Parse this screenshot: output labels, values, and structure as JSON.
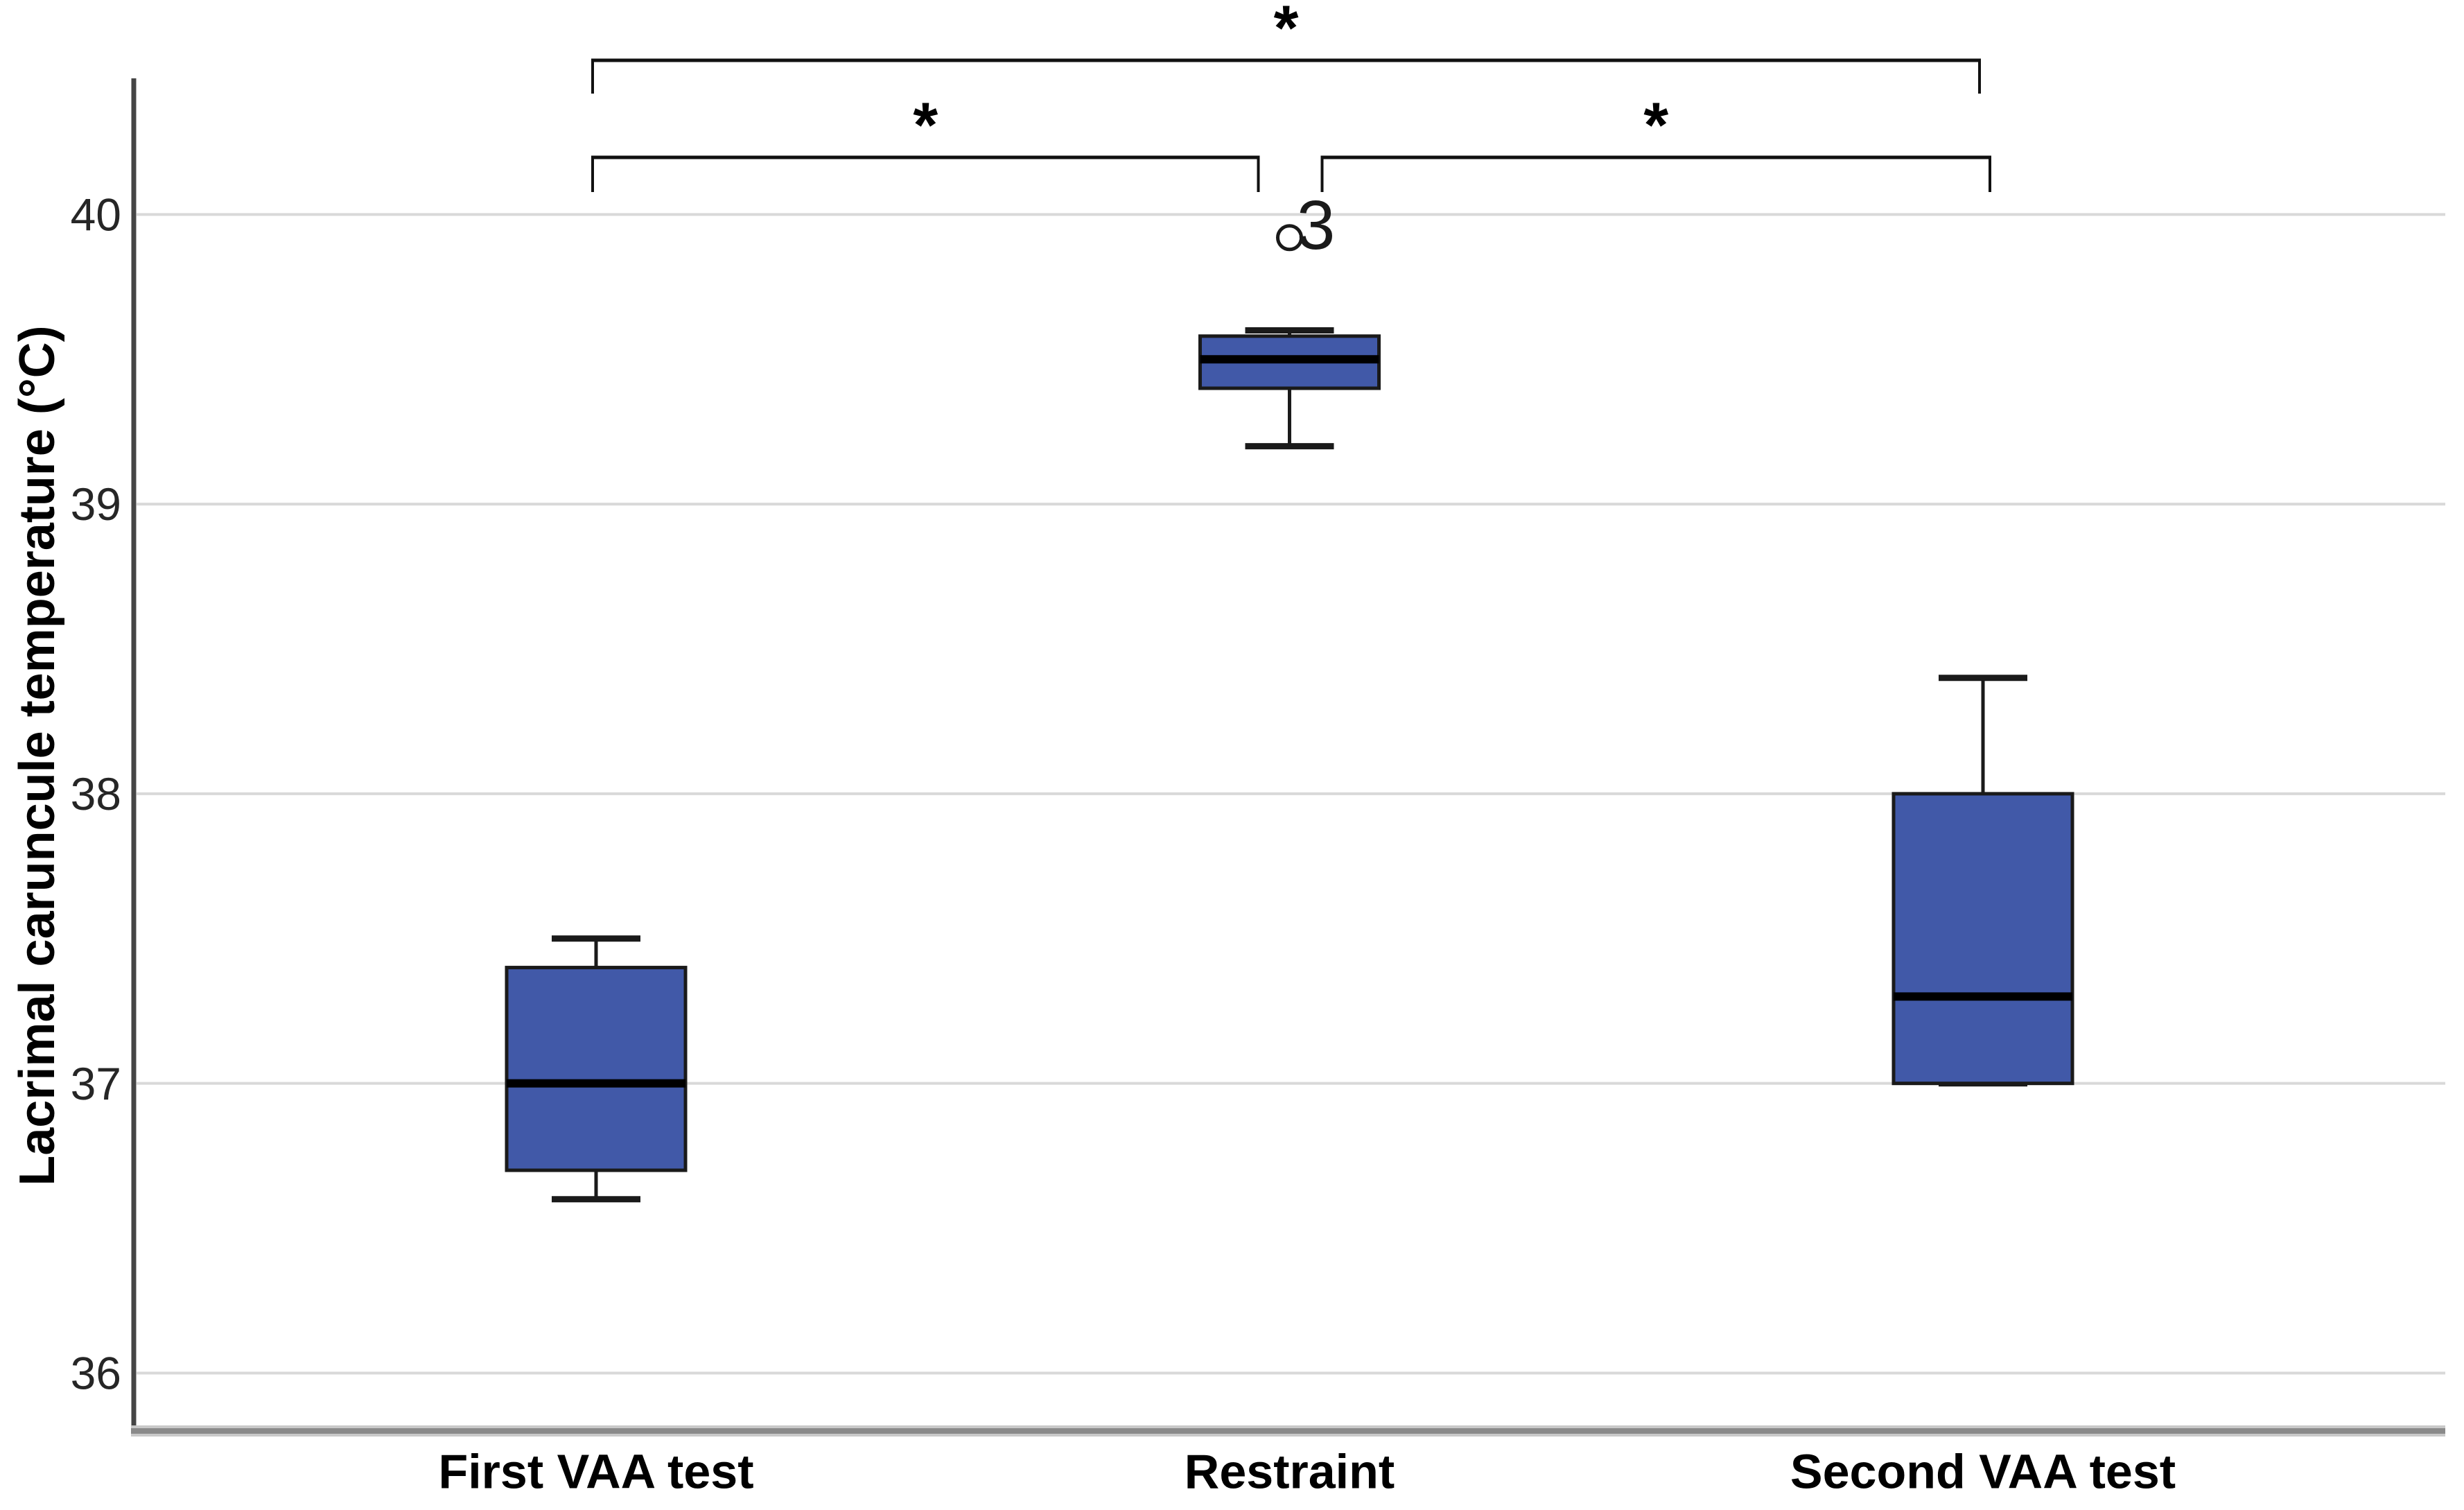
{
  "figure": {
    "background": "#ffffff"
  },
  "chart_data": {
    "type": "box",
    "title": "",
    "ylabel": "Lacrimal caruncule temperature (°C)",
    "xlabel": "",
    "ylim": [
      35.8,
      40.47
    ],
    "yticks": [
      "36",
      "37",
      "38",
      "39",
      "40"
    ],
    "ytick_values": [
      36,
      37,
      38,
      39,
      40
    ],
    "grid": "horizontal gridlines at each integer tick",
    "legend": "none",
    "categories": [
      "First VAA test",
      "Restraint",
      "Second VAA test"
    ],
    "boxes": [
      {
        "category": "First VAA test",
        "whisker_low": 36.6,
        "q1": 36.7,
        "median": 37.0,
        "q3": 37.4,
        "whisker_high": 37.5,
        "outliers": []
      },
      {
        "category": "Restraint",
        "whisker_low": 39.2,
        "q1": 39.4,
        "median": 39.5,
        "q3": 39.58,
        "whisker_high": 39.6,
        "outliers": [
          {
            "value": 39.92,
            "label": "3",
            "marker": "circle"
          }
        ]
      },
      {
        "category": "Second VAA test",
        "whisker_low": 37.0,
        "q1": 37.0,
        "median": 37.3,
        "q3": 38.0,
        "whisker_high": 38.4,
        "outliers": []
      }
    ],
    "significance_brackets": [
      {
        "from": 0,
        "to": 2,
        "level": "top",
        "label": "*"
      },
      {
        "from": 0,
        "to": 1,
        "level": "mid",
        "label": "*"
      },
      {
        "from": 1,
        "to": 2,
        "level": "mid",
        "label": "*"
      }
    ],
    "colors": {
      "box_fill": "#4159a8",
      "box_border": "#1a1a1a",
      "median": "#000000",
      "whisker": "#1a1a1a",
      "gridline": "#d9d9d9",
      "y_axis": "#454545",
      "x_axis_dark": "#8a8a8a",
      "x_axis_light": "#c9c9c9",
      "tick_text": "#262626",
      "label_text": "#000000"
    }
  }
}
